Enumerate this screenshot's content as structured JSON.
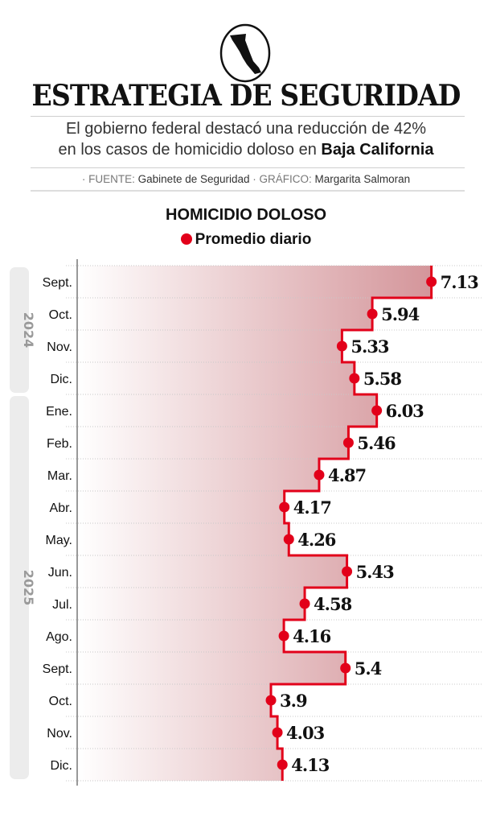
{
  "header": {
    "logo": "Baja California map in circle",
    "title": "ESTRATEGIA DE SEGURIDAD",
    "subtitle_line1": "El gobierno federal destacó una reducción de 42%",
    "subtitle_line2_prefix": "en los casos de homicidio doloso en",
    "subtitle_line2_bold": "Baja California",
    "source_label": "· FUENTE:",
    "source_value": "Gabinete de Seguridad",
    "graphic_label": "· GRÁFICO:",
    "graphic_value": "Margarita Salmoran"
  },
  "chart_data": {
    "type": "step-line",
    "orientation": "vertical",
    "title": "HOMICIDIO DOLOSO",
    "legend": [
      {
        "name": "Promedio diario",
        "color": "#e2001a"
      }
    ],
    "legend_placement": "top",
    "years": [
      {
        "label": "2024",
        "months": [
          "Sept.",
          "Oct.",
          "Nov.",
          "Dic."
        ]
      },
      {
        "label": "2025",
        "months": [
          "Ene.",
          "Feb.",
          "Mar.",
          "Abr.",
          "May.",
          "Jun.",
          "Jul.",
          "Ago.",
          "Sept.",
          "Oct.",
          "Nov.",
          "Dic."
        ]
      }
    ],
    "categories": [
      "Sept.",
      "Oct.",
      "Nov.",
      "Dic.",
      "Ene.",
      "Feb.",
      "Mar.",
      "Abr.",
      "May.",
      "Jun.",
      "Jul.",
      "Ago.",
      "Sept.",
      "Oct.",
      "Nov.",
      "Dic."
    ],
    "values": [
      7.13,
      5.94,
      5.33,
      5.58,
      6.03,
      5.46,
      4.87,
      4.17,
      4.26,
      5.43,
      4.58,
      4.16,
      5.4,
      3.9,
      4.03,
      4.13
    ],
    "labels": [
      "7.13",
      "5.94",
      "5.33",
      "5.58",
      "6.03",
      "5.46",
      "4.87",
      "4.17",
      "4.26",
      "5.43",
      "4.58",
      "4.16",
      "5.4",
      "3.9",
      "4.03",
      "4.13"
    ],
    "xlim": [
      0,
      8
    ],
    "grid": true,
    "colors": {
      "line": "#e2001a",
      "fill_start": "#ffffff",
      "fill_end": "#d4959a",
      "year_band": "#ececec"
    }
  }
}
